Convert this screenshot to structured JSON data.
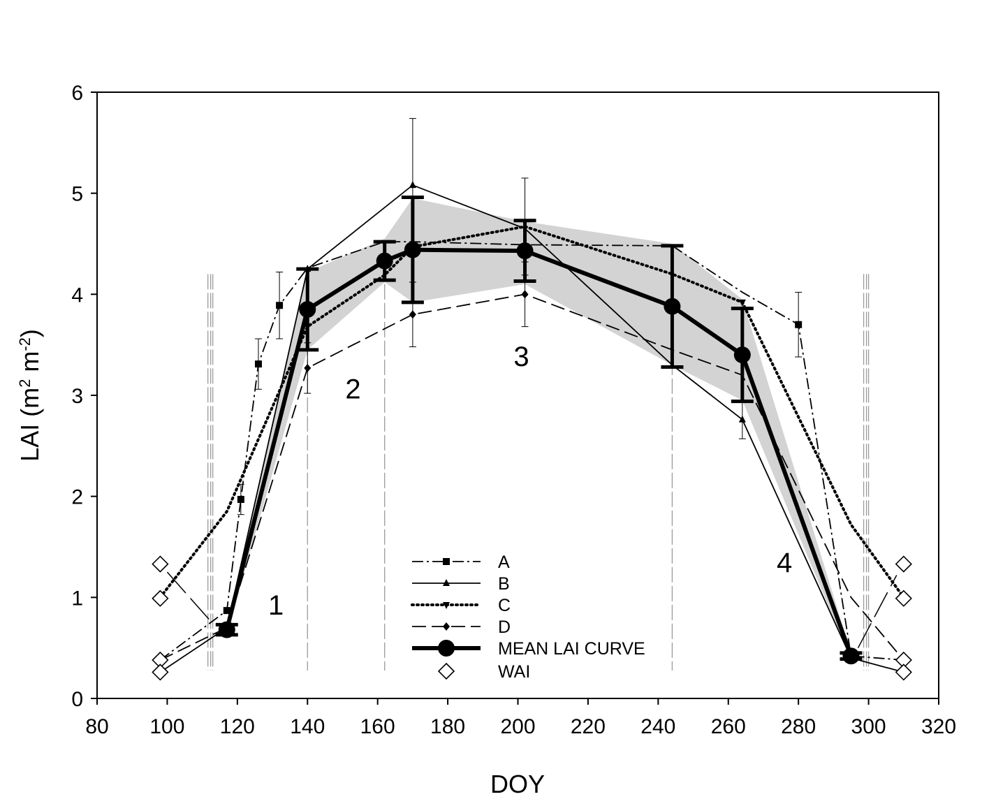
{
  "chart_data": {
    "type": "line",
    "title": "",
    "xlabel": "DOY",
    "ylabel": "LAI (m2 m-2)",
    "ylabel_parts": {
      "main": "LAI (m",
      "sup1": "2",
      "mid": " m",
      "sup2": "-2",
      "end": ")"
    },
    "xlim": [
      80,
      320
    ],
    "ylim": [
      0,
      6
    ],
    "xticks": [
      80,
      100,
      120,
      140,
      160,
      180,
      200,
      220,
      240,
      260,
      280,
      300,
      320
    ],
    "yticks": [
      0,
      1,
      2,
      3,
      4,
      5,
      6
    ],
    "legend_position": "bottom-center",
    "series": [
      {
        "name": "A",
        "style": "dash-dot",
        "marker": "square",
        "x": [
          98,
          117,
          121,
          126,
          132,
          140,
          162,
          170,
          202,
          244,
          264,
          280,
          295,
          310
        ],
        "y": [
          0.38,
          0.87,
          1.97,
          3.31,
          3.89,
          4.26,
          4.52,
          4.52,
          4.49,
          4.48,
          4.02,
          3.7,
          0.42,
          0.38
        ],
        "marker_at": [
          1,
          2,
          3,
          4,
          11
        ],
        "err": [
          null,
          null,
          0.15,
          0.25,
          0.33,
          null,
          null,
          null,
          null,
          null,
          null,
          0.32,
          null,
          null
        ]
      },
      {
        "name": "B",
        "style": "solid",
        "marker": "triangle-up",
        "x": [
          98,
          117,
          140,
          170,
          202,
          244,
          264,
          295,
          310
        ],
        "y": [
          0.26,
          0.7,
          4.25,
          5.08,
          4.65,
          3.3,
          2.76,
          0.4,
          0.26
        ],
        "marker_at": [
          2,
          3,
          6
        ],
        "err": [
          null,
          null,
          null,
          0.66,
          null,
          null,
          0.19,
          null,
          null
        ]
      },
      {
        "name": "C",
        "style": "dotted",
        "marker": "triangle-down",
        "x": [
          98,
          117,
          140,
          162,
          170,
          202,
          244,
          264,
          295,
          310
        ],
        "y": [
          1.0,
          1.85,
          3.68,
          4.19,
          4.47,
          4.67,
          4.2,
          3.92,
          1.72,
          1.0
        ],
        "marker_at": [
          2,
          7
        ],
        "err": [
          null,
          null,
          null,
          null,
          null,
          0.48,
          null,
          null,
          null,
          null
        ]
      },
      {
        "name": "D",
        "style": "dashed",
        "marker": "diamond",
        "x": [
          98,
          117,
          140,
          170,
          202,
          244,
          264,
          295,
          310
        ],
        "y": [
          0.38,
          0.7,
          3.27,
          3.8,
          4.0,
          3.45,
          3.2,
          1.0,
          0.38
        ],
        "marker_at": [
          2,
          3,
          4
        ],
        "err": [
          null,
          null,
          0.25,
          0.32,
          0.32,
          null,
          null,
          null,
          null
        ]
      },
      {
        "name": "MEAN LAI CURVE",
        "style": "thick-solid",
        "marker": "circle",
        "x": [
          117,
          140,
          162,
          170,
          202,
          244,
          264,
          295
        ],
        "y": [
          0.68,
          3.85,
          4.33,
          4.44,
          4.43,
          3.88,
          3.4,
          0.42
        ],
        "err": [
          0.05,
          0.4,
          0.19,
          0.52,
          0.3,
          0.6,
          0.46,
          0.03
        ]
      }
    ],
    "wai_points": [
      {
        "x": 98,
        "y": 1.33
      },
      {
        "x": 98,
        "y": 0.99
      },
      {
        "x": 98,
        "y": 0.38
      },
      {
        "x": 98,
        "y": 0.26
      },
      {
        "x": 310,
        "y": 1.33
      },
      {
        "x": 310,
        "y": 0.99
      },
      {
        "x": 310,
        "y": 0.38
      },
      {
        "x": 310,
        "y": 0.26
      }
    ],
    "wai_label": "WAI",
    "shaded_band": {
      "x": [
        117,
        140,
        162,
        170,
        202,
        244,
        264,
        295
      ],
      "upper": [
        0.72,
        4.22,
        4.55,
        4.95,
        4.72,
        4.5,
        3.95,
        0.45
      ],
      "lower": [
        0.64,
        3.45,
        4.12,
        3.92,
        4.1,
        3.3,
        2.95,
        0.38
      ]
    },
    "phase_boundaries": [
      {
        "x": 112,
        "count": 2
      },
      {
        "x": 113,
        "count": 1
      },
      {
        "x": 140,
        "count": 1
      },
      {
        "x": 162,
        "count": 1
      },
      {
        "x": 244,
        "count": 1
      },
      {
        "x": 299,
        "count": 2
      },
      {
        "x": 300,
        "count": 1
      }
    ],
    "phase_labels": [
      {
        "text": "1",
        "x": 131,
        "y": 0.83
      },
      {
        "text": "2",
        "x": 153,
        "y": 2.97
      },
      {
        "text": "3",
        "x": 201,
        "y": 3.29
      },
      {
        "text": "4",
        "x": 276,
        "y": 1.25
      }
    ]
  }
}
